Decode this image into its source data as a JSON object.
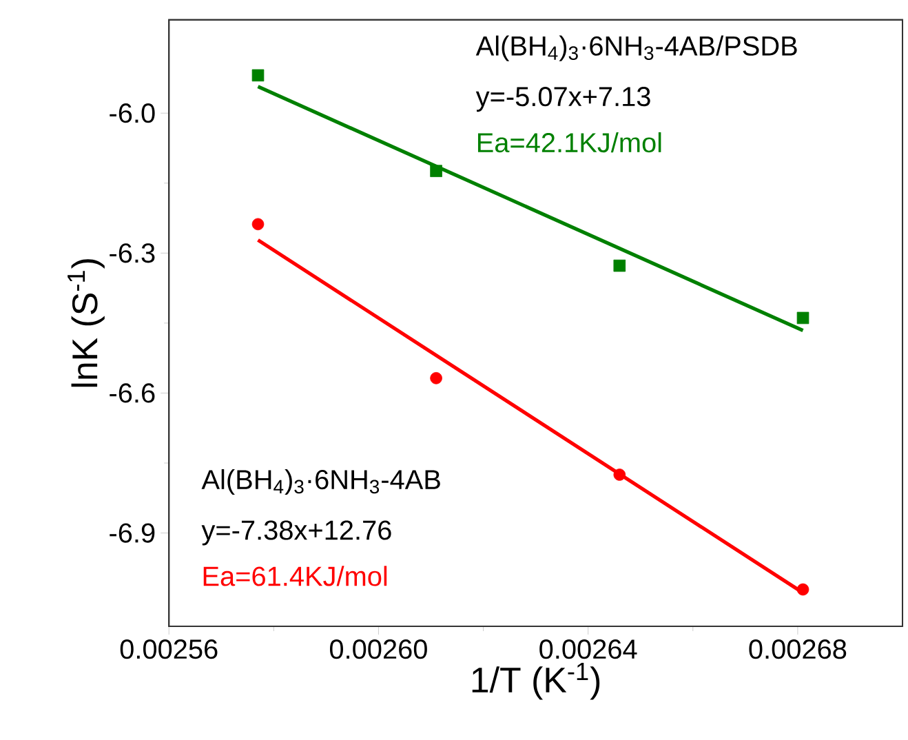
{
  "chart_data": {
    "type": "scatter",
    "xlabel": "1/T (K$^{-1}$)",
    "ylabel": "lnK (S$^{-1}$)",
    "xlim": [
      0.00256,
      0.0027
    ],
    "ylim": [
      -7.1,
      -5.8
    ],
    "xticks": [
      {
        "value": 0.00256,
        "label": "0.00256"
      },
      {
        "value": 0.0026,
        "label": "0.00260"
      },
      {
        "value": 0.00264,
        "label": "0.00264"
      },
      {
        "value": 0.00268,
        "label": "0.00268"
      }
    ],
    "yticks": [
      {
        "value": -6.0,
        "label": "-6.0"
      },
      {
        "value": -6.3,
        "label": "-6.3"
      },
      {
        "value": -6.6,
        "label": "-6.6"
      },
      {
        "value": -6.9,
        "label": "-6.9"
      }
    ],
    "series": [
      {
        "color": "#008000",
        "marker": "square",
        "x": [
          0.002577,
          0.002611,
          0.002646,
          0.002681
        ],
        "values": [
          -5.919,
          -6.124,
          -6.327,
          -6.439
        ]
      },
      {
        "type": "line",
        "color": "#008000",
        "x": [
          0.002577,
          0.002681
        ],
        "values": [
          -5.943,
          -6.466
        ]
      },
      {
        "color": "#ff0000",
        "marker": "circle",
        "x": [
          0.002577,
          0.002611,
          0.002646,
          0.002681
        ],
        "values": [
          -6.238,
          -6.568,
          -6.775,
          -7.021
        ]
      },
      {
        "type": "line",
        "color": "#ff0000",
        "x": [
          0.002577,
          0.002681
        ],
        "values": [
          -6.272,
          -7.028
        ]
      }
    ],
    "annotations": [
      "Al(BH$_{4}$)$_{3}$·6NH$_{3}$-4AB/PSDB",
      "y=-5.07x+7.13",
      "Ea=42.1KJ/mol",
      "Al(BH$_{4}$)$_{3}$·6NH$_{3}$-4AB",
      "y=-7.38x+12.76",
      "Ea=61.4KJ/mol"
    ]
  }
}
